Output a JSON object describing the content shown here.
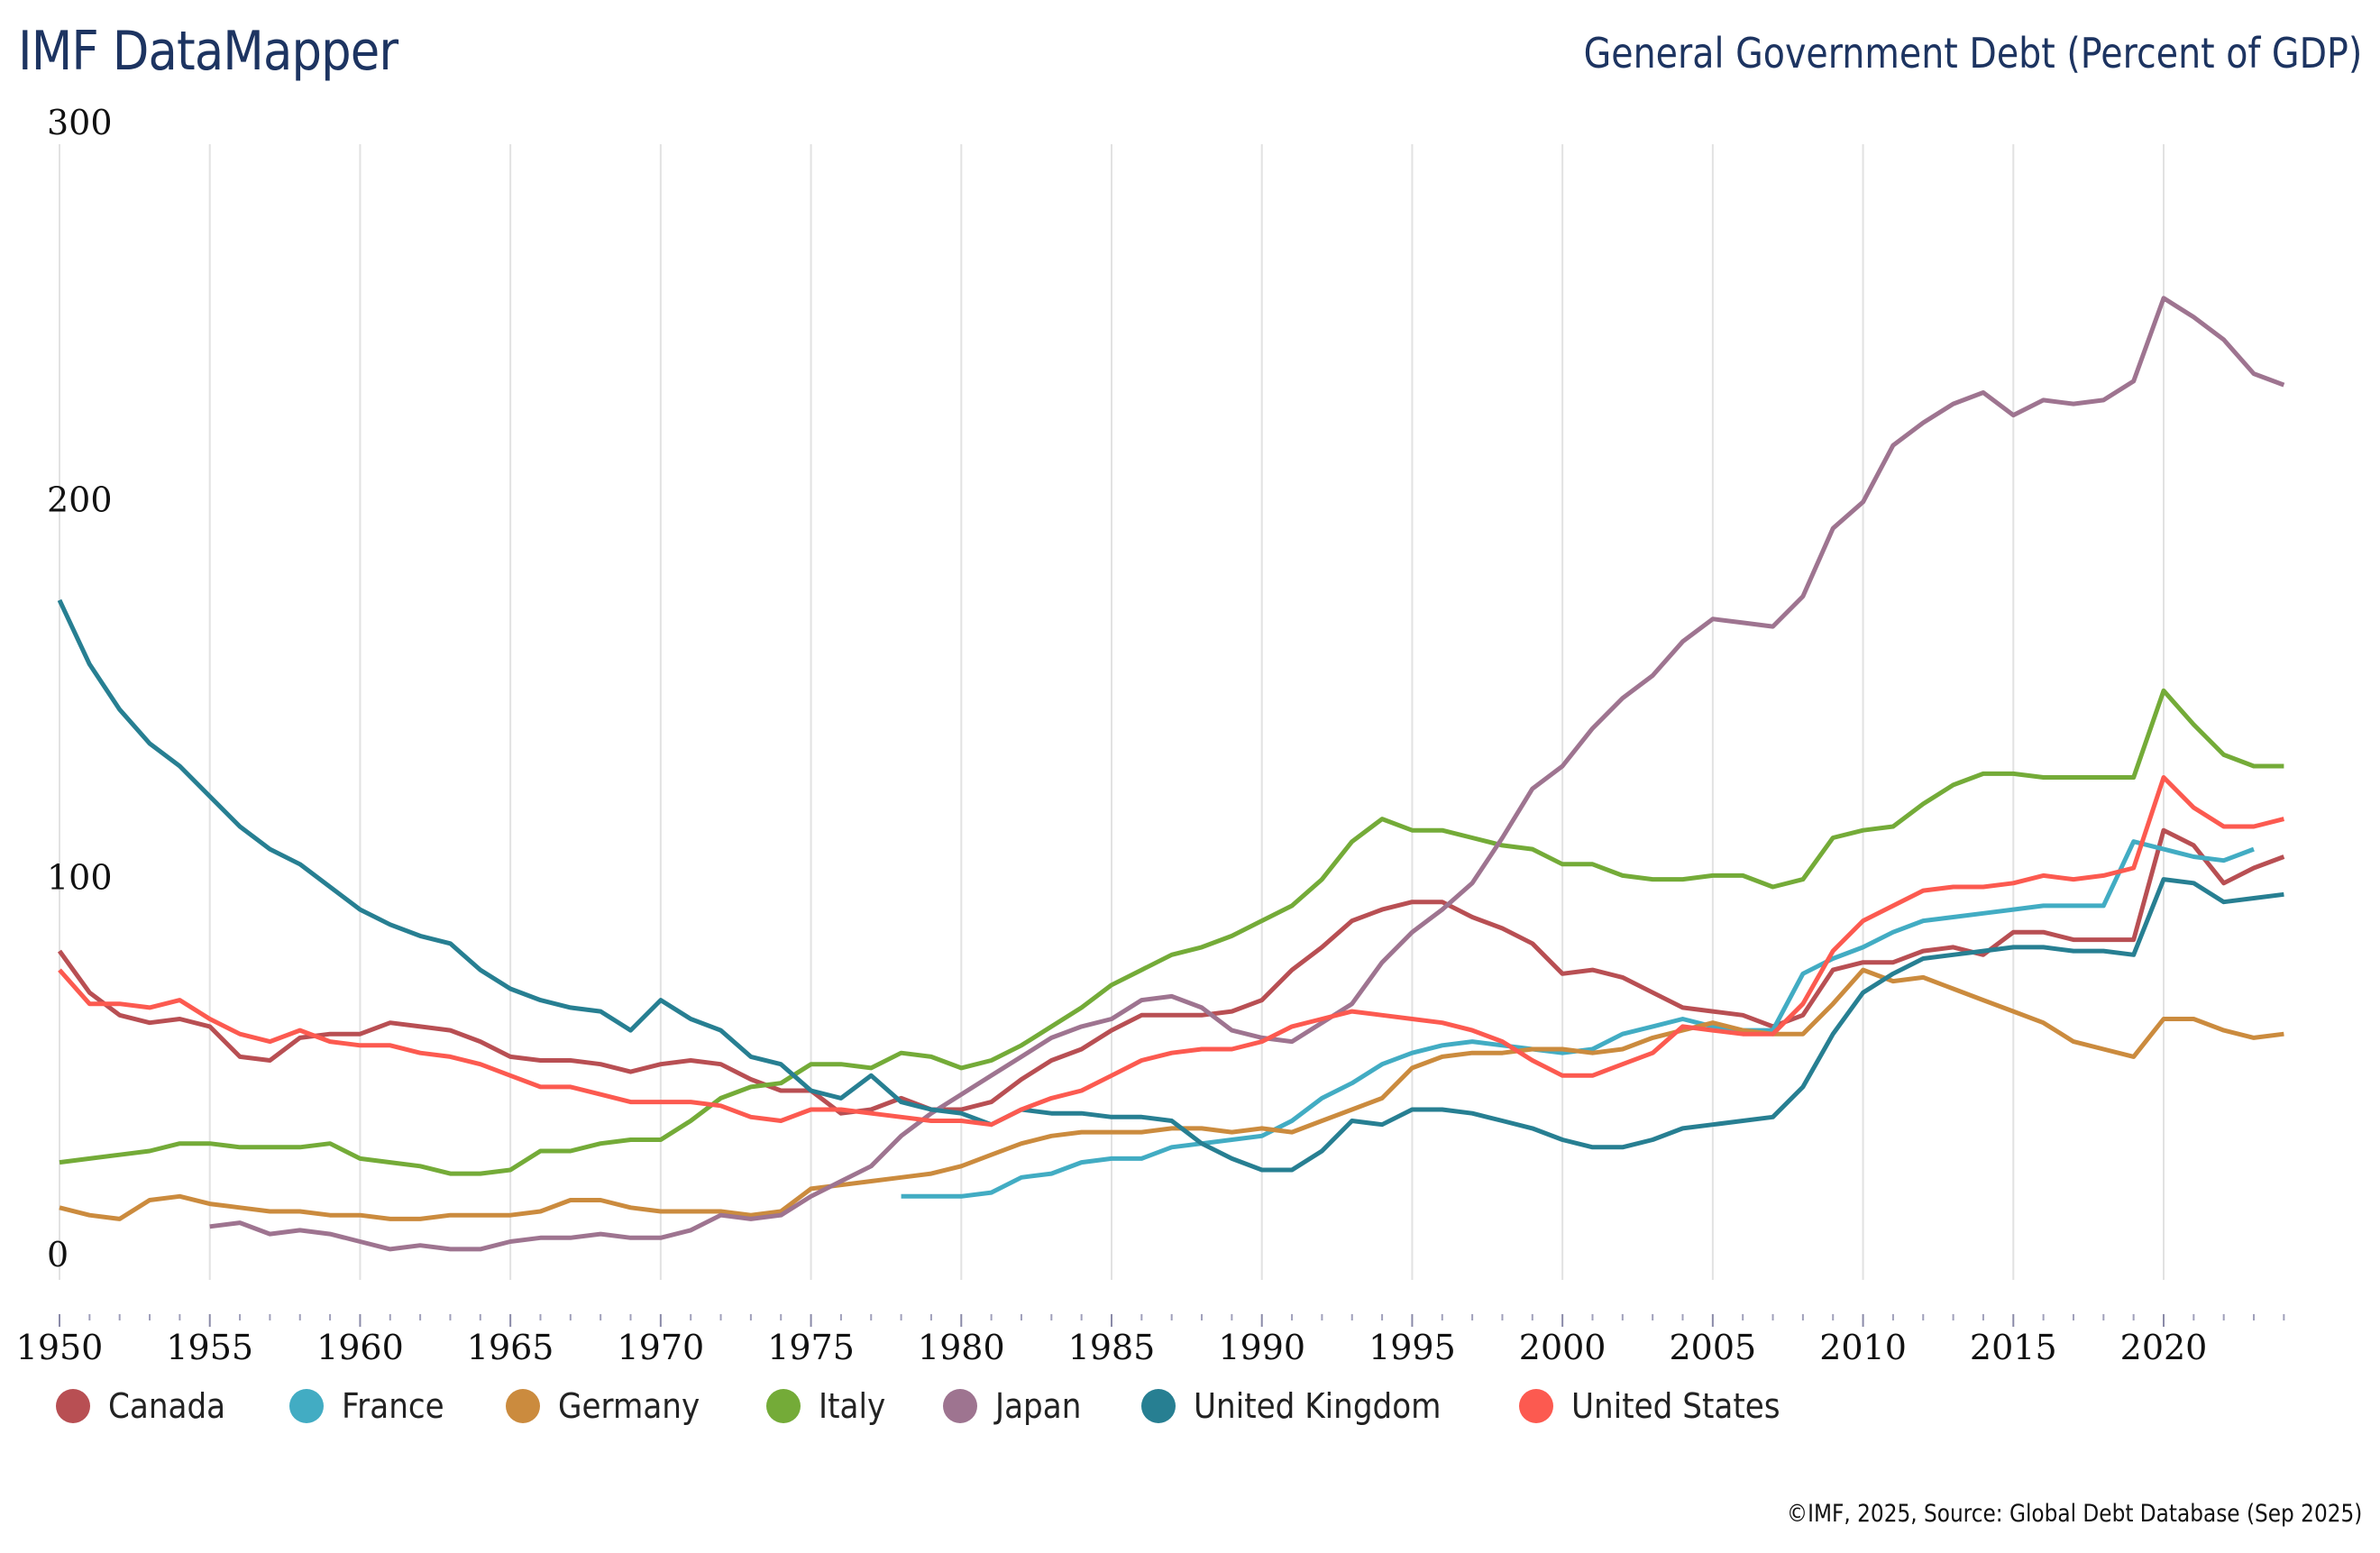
{
  "header": {
    "brand": "IMF DataMapper",
    "title": "General Government Debt (Percent of GDP)"
  },
  "footer": {
    "source": "©IMF, 2025, Source: Global Debt Database (Sep 2025)"
  },
  "chart_data": {
    "type": "line",
    "title": "General Government Debt (Percent of GDP)",
    "xlabel": "",
    "ylabel": "",
    "xlim": [
      1950,
      2024
    ],
    "ylim": [
      0,
      300
    ],
    "yticks": [
      0,
      100,
      200,
      300
    ],
    "xticks": [
      1950,
      1955,
      1960,
      1965,
      1970,
      1975,
      1980,
      1985,
      1990,
      1995,
      2000,
      2005,
      2010,
      2015,
      2020
    ],
    "grid": "vertical",
    "legend_position": "bottom-left",
    "series": [
      {
        "name": "Canada",
        "color": "#b84f53",
        "start_year": 1950,
        "values": [
          85,
          74,
          68,
          66,
          67,
          65,
          57,
          56,
          62,
          63,
          63,
          66,
          65,
          64,
          61,
          57,
          56,
          56,
          55,
          53,
          55,
          56,
          55,
          51,
          48,
          48,
          42,
          43,
          46,
          43,
          43,
          45,
          51,
          56,
          59,
          64,
          68,
          68,
          68,
          69,
          72,
          80,
          86,
          93,
          96,
          98,
          98,
          94,
          91,
          87,
          79,
          80,
          78,
          74,
          70,
          69,
          68,
          65,
          68,
          80,
          82,
          82,
          85,
          86,
          84,
          90,
          90,
          88,
          88,
          88,
          117,
          113,
          103,
          107,
          110
        ]
      },
      {
        "name": "France",
        "color": "#42acc3",
        "start_year": 1978,
        "values": [
          20,
          20,
          20,
          21,
          25,
          26,
          29,
          30,
          30,
          33,
          34,
          35,
          36,
          40,
          46,
          50,
          55,
          58,
          60,
          61,
          60,
          59,
          58,
          59,
          63,
          65,
          67,
          65,
          64,
          64,
          79,
          83,
          86,
          90,
          93,
          94,
          95,
          96,
          97,
          97,
          97,
          114,
          112,
          110,
          109,
          112
        ]
      },
      {
        "name": "Germany",
        "color": "#cb8b3e",
        "start_year": 1950,
        "values": [
          17,
          15,
          14,
          19,
          20,
          18,
          17,
          16,
          16,
          15,
          15,
          14,
          14,
          15,
          15,
          15,
          16,
          19,
          19,
          17,
          16,
          16,
          16,
          15,
          16,
          22,
          23,
          24,
          25,
          26,
          28,
          31,
          34,
          36,
          37,
          37,
          37,
          38,
          38,
          37,
          38,
          37,
          40,
          43,
          46,
          54,
          57,
          58,
          58,
          59,
          59,
          58,
          59,
          62,
          64,
          66,
          64,
          63,
          63,
          71,
          80,
          77,
          78,
          75,
          72,
          69,
          66,
          61,
          59,
          57,
          67,
          67,
          64,
          62,
          63
        ]
      },
      {
        "name": "Italy",
        "color": "#74ab38",
        "start_year": 1950,
        "values": [
          29,
          30,
          31,
          32,
          34,
          34,
          33,
          33,
          33,
          34,
          30,
          29,
          28,
          26,
          26,
          27,
          32,
          32,
          34,
          35,
          35,
          40,
          46,
          49,
          50,
          55,
          55,
          54,
          58,
          57,
          54,
          56,
          60,
          65,
          70,
          76,
          80,
          84,
          86,
          89,
          93,
          97,
          104,
          114,
          120,
          117,
          117,
          115,
          113,
          112,
          108,
          108,
          105,
          104,
          104,
          105,
          105,
          102,
          104,
          115,
          117,
          118,
          124,
          129,
          132,
          132,
          131,
          131,
          131,
          131,
          154,
          145,
          137,
          134,
          134
        ]
      },
      {
        "name": "Japan",
        "color": "#9e7490",
        "start_year": 1955,
        "values": [
          12,
          13,
          10,
          11,
          10,
          8,
          6,
          7,
          6,
          6,
          8,
          9,
          9,
          10,
          9,
          9,
          11,
          15,
          14,
          15,
          20,
          24,
          28,
          36,
          42,
          47,
          52,
          57,
          62,
          65,
          67,
          72,
          73,
          70,
          64,
          62,
          61,
          66,
          71,
          82,
          90,
          96,
          103,
          115,
          128,
          134,
          144,
          152,
          158,
          167,
          173,
          172,
          171,
          179,
          197,
          204,
          219,
          225,
          230,
          233,
          227,
          231,
          230,
          231,
          236,
          258,
          253,
          247,
          238,
          235
        ]
      },
      {
        "name": "United Kingdom",
        "color": "#277f92",
        "start_year": 1950,
        "values": [
          178,
          161,
          149,
          140,
          134,
          126,
          118,
          112,
          108,
          102,
          96,
          92,
          89,
          87,
          80,
          75,
          72,
          70,
          69,
          64,
          72,
          67,
          64,
          57,
          55,
          48,
          46,
          52,
          45,
          43,
          42,
          39,
          43,
          42,
          42,
          41,
          41,
          40,
          34,
          30,
          27,
          27,
          32,
          40,
          39,
          43,
          43,
          42,
          40,
          38,
          35,
          33,
          33,
          35,
          38,
          39,
          40,
          41,
          49,
          63,
          74,
          79,
          83,
          84,
          85,
          86,
          86,
          85,
          85,
          84,
          104,
          103,
          98,
          99,
          100
        ]
      },
      {
        "name": "United States",
        "color": "#fc5a50",
        "start_year": 1950,
        "values": [
          80,
          71,
          71,
          70,
          72,
          67,
          63,
          61,
          64,
          61,
          60,
          60,
          58,
          57,
          55,
          52,
          49,
          49,
          47,
          45,
          45,
          45,
          44,
          41,
          40,
          43,
          43,
          42,
          41,
          40,
          40,
          39,
          43,
          46,
          48,
          52,
          56,
          58,
          59,
          59,
          61,
          65,
          67,
          69,
          68,
          67,
          66,
          64,
          61,
          56,
          52,
          52,
          55,
          58,
          65,
          64,
          63,
          63,
          71,
          85,
          93,
          97,
          101,
          102,
          102,
          103,
          105,
          104,
          105,
          107,
          131,
          123,
          118,
          118,
          120
        ]
      }
    ]
  },
  "legend": {
    "items": [
      {
        "label": "Canada",
        "color": "#b84f53"
      },
      {
        "label": "France",
        "color": "#42acc3"
      },
      {
        "label": "Germany",
        "color": "#cb8b3e"
      },
      {
        "label": "Italy",
        "color": "#74ab38"
      },
      {
        "label": "Japan",
        "color": "#9e7490"
      },
      {
        "label": "United Kingdom",
        "color": "#277f92"
      },
      {
        "label": "United States",
        "color": "#fc5a50"
      }
    ]
  }
}
